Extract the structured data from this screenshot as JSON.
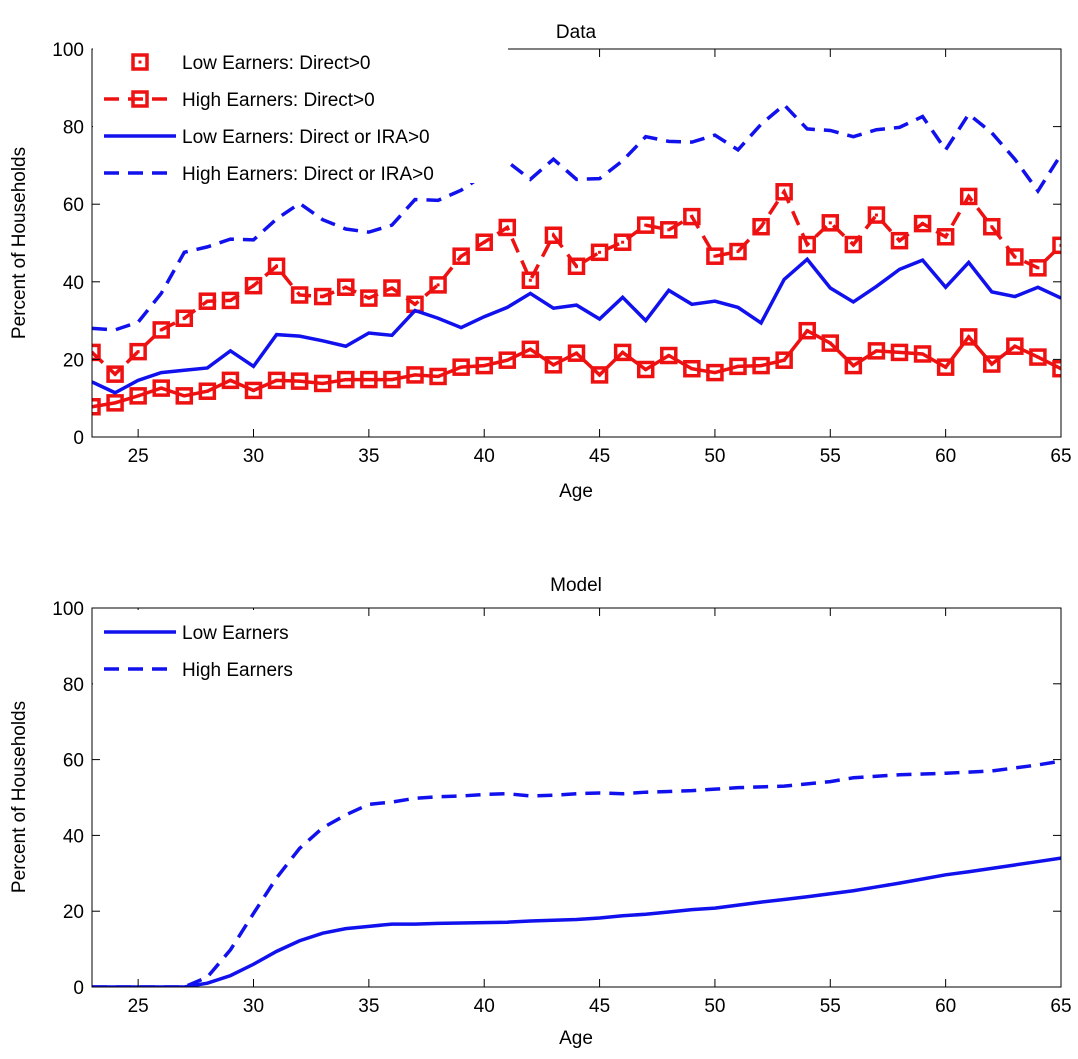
{
  "chart_data": [
    {
      "type": "line",
      "title": "Data",
      "xlabel": "Age",
      "ylabel": "Percent of Households",
      "xlim": [
        23,
        65
      ],
      "ylim": [
        0,
        100
      ],
      "xticks": [
        25,
        30,
        35,
        40,
        45,
        50,
        55,
        60,
        65
      ],
      "yticks": [
        0,
        20,
        40,
        60,
        80,
        100
      ],
      "grid": false,
      "legend_position": "top-left",
      "x": [
        23,
        24,
        25,
        26,
        27,
        28,
        29,
        30,
        31,
        32,
        33,
        34,
        35,
        36,
        37,
        38,
        39,
        40,
        41,
        42,
        43,
        44,
        45,
        46,
        47,
        48,
        49,
        50,
        51,
        52,
        53,
        54,
        55,
        56,
        57,
        58,
        59,
        60,
        61,
        62,
        63,
        64,
        65
      ],
      "series": [
        {
          "name": "Low Earners: Direct>0",
          "color": "#ee1111",
          "line": "solid",
          "marker": "square",
          "values": [
            7.8,
            8.8,
            10.6,
            12.6,
            10.6,
            11.8,
            14.6,
            12,
            14.6,
            14.4,
            13.8,
            14.8,
            14.8,
            14.8,
            16,
            15.6,
            18,
            18.4,
            19.8,
            22.6,
            18.6,
            21.6,
            16,
            21.8,
            17.4,
            21,
            17.6,
            16.6,
            18.2,
            18.4,
            19.8,
            27.4,
            24.2,
            18.4,
            22.2,
            21.8,
            21.4,
            18,
            25.8,
            18.8,
            23.4,
            20.6,
            17.6
          ]
        },
        {
          "name": "High Earners: Direct>0",
          "color": "#ee1111",
          "line": "dashed",
          "marker": "square",
          "values": [
            21.8,
            16.2,
            22,
            27.6,
            30.6,
            35,
            35.2,
            39,
            44,
            36.6,
            36.2,
            38.6,
            35.8,
            38.4,
            34.2,
            39.2,
            46.6,
            50.2,
            54,
            40.4,
            52,
            44,
            47.6,
            50.2,
            54.6,
            53.4,
            56.8,
            46.6,
            47.8,
            54.2,
            63.2,
            49.6,
            55.2,
            49.6,
            57.2,
            50.6,
            55,
            51.6,
            62,
            54.2,
            46.4,
            43.6,
            49.4
          ]
        },
        {
          "name": "Low Earners: Direct or IRA>0",
          "color": "#1111ee",
          "line": "solid",
          "marker": "none",
          "values": [
            14.2,
            11.4,
            14.6,
            16.6,
            17.2,
            17.8,
            22.2,
            18.2,
            26.4,
            26,
            24.8,
            23.4,
            26.8,
            26.2,
            32.6,
            30.6,
            28.2,
            31,
            33.4,
            37,
            33.2,
            34,
            30.4,
            36,
            30,
            37.8,
            34.2,
            35,
            33.4,
            29.4,
            40.6,
            45.8,
            38.4,
            34.8,
            38.8,
            43.2,
            45.6,
            38.6,
            45,
            37.4,
            36.2,
            38.6,
            35.8
          ]
        },
        {
          "name": "High Earners: Direct or IRA>0",
          "color": "#1111ee",
          "line": "dashed",
          "marker": "none",
          "values": [
            28,
            27.6,
            29.6,
            37,
            47.6,
            49,
            51,
            50.8,
            56.2,
            60.2,
            56,
            53.6,
            52.8,
            54.6,
            61.2,
            61,
            63.6,
            67.6,
            71,
            66.4,
            71.6,
            66.4,
            66.6,
            71.2,
            77.4,
            76.2,
            76,
            77.8,
            74,
            80.6,
            85.6,
            79.4,
            79,
            77.4,
            79.2,
            79.8,
            82.6,
            74,
            83.2,
            78.4,
            71.6,
            63.4,
            72.8
          ]
        }
      ]
    },
    {
      "type": "line",
      "title": "Model",
      "xlabel": "Age",
      "ylabel": "Percent of Households",
      "xlim": [
        23,
        65
      ],
      "ylim": [
        0,
        100
      ],
      "xticks": [
        25,
        30,
        35,
        40,
        45,
        50,
        55,
        60,
        65
      ],
      "yticks": [
        0,
        20,
        40,
        60,
        80,
        100
      ],
      "grid": false,
      "legend_position": "top-left",
      "x": [
        23,
        24,
        25,
        26,
        27,
        28,
        29,
        30,
        31,
        32,
        33,
        34,
        35,
        36,
        37,
        38,
        39,
        40,
        41,
        42,
        43,
        44,
        45,
        46,
        47,
        48,
        49,
        50,
        51,
        52,
        53,
        54,
        55,
        56,
        57,
        58,
        59,
        60,
        61,
        62,
        63,
        64,
        65
      ],
      "series": [
        {
          "name": "Low Earners",
          "color": "#1111ee",
          "line": "solid",
          "marker": "none",
          "values": [
            0,
            0,
            0,
            0,
            0,
            1,
            3,
            6,
            9.4,
            12.2,
            14.2,
            15.4,
            16,
            16.6,
            16.6,
            16.8,
            16.9,
            17,
            17.1,
            17.4,
            17.6,
            17.8,
            18.2,
            18.8,
            19.2,
            19.8,
            20.4,
            20.8,
            21.6,
            22.4,
            23.1,
            23.8,
            24.6,
            25.4,
            26.4,
            27.4,
            28.5,
            29.6,
            30.4,
            31.3,
            32.2,
            33.1,
            34
          ]
        },
        {
          "name": "High Earners",
          "color": "#1111ee",
          "line": "dashed",
          "marker": "none",
          "values": [
            0,
            0,
            0,
            0,
            0,
            2.6,
            9.8,
            19.4,
            28.8,
            36.6,
            42,
            45.4,
            48.2,
            48.8,
            49.8,
            50.2,
            50.4,
            50.8,
            51,
            50.4,
            50.6,
            51,
            51.2,
            51,
            51.4,
            51.6,
            51.8,
            52.2,
            52.6,
            52.8,
            53,
            53.6,
            54.2,
            55.2,
            55.6,
            56,
            56.2,
            56.4,
            56.7,
            57,
            57.8,
            58.6,
            59.6
          ]
        }
      ]
    }
  ]
}
